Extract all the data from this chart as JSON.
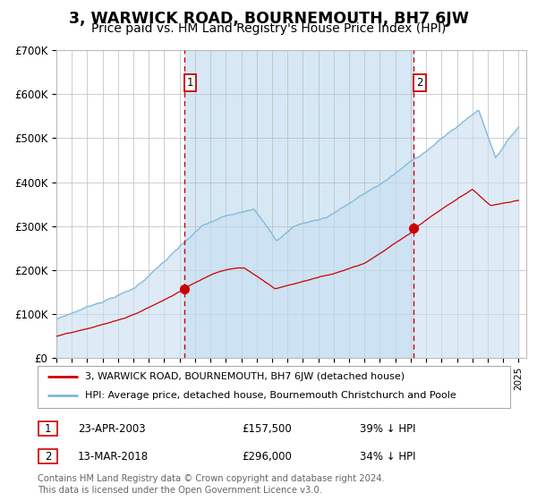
{
  "title": "3, WARWICK ROAD, BOURNEMOUTH, BH7 6JW",
  "subtitle": "Price paid vs. HM Land Registry's House Price Index (HPI)",
  "title_fontsize": 12.5,
  "subtitle_fontsize": 10,
  "ylim": [
    0,
    700000
  ],
  "yticks": [
    0,
    100000,
    200000,
    300000,
    400000,
    500000,
    600000,
    700000
  ],
  "ytick_labels": [
    "£0",
    "£100K",
    "£200K",
    "£300K",
    "£400K",
    "£500K",
    "£600K",
    "£700K"
  ],
  "hpi_color": "#7db8d8",
  "hpi_fill_color": "#c8dff0",
  "prop_color": "#cc0000",
  "grid_color": "#bbbbbb",
  "bg_color": "#ffffff",
  "purchase1_year": 2003.3,
  "purchase1_price": 157500,
  "purchase1_label": "1",
  "purchase2_year": 2018.19,
  "purchase2_price": 296000,
  "purchase2_label": "2",
  "shade_color": "#d6e8f5",
  "vline_color": "#cc0000",
  "marker_color": "#cc0000",
  "legend_items": [
    {
      "label": "3, WARWICK ROAD, BOURNEMOUTH, BH7 6JW (detached house)",
      "color": "#cc0000"
    },
    {
      "label": "HPI: Average price, detached house, Bournemouth Christchurch and Poole",
      "color": "#7db8d8"
    }
  ],
  "table_rows": [
    {
      "num": "1",
      "date": "23-APR-2003",
      "price": "£157,500",
      "hpi": "39% ↓ HPI"
    },
    {
      "num": "2",
      "date": "13-MAR-2018",
      "price": "£296,000",
      "hpi": "34% ↓ HPI"
    }
  ],
  "footnote": "Contains HM Land Registry data © Crown copyright and database right 2024.\nThis data is licensed under the Open Government Licence v3.0.",
  "footnote_fontsize": 7.2
}
